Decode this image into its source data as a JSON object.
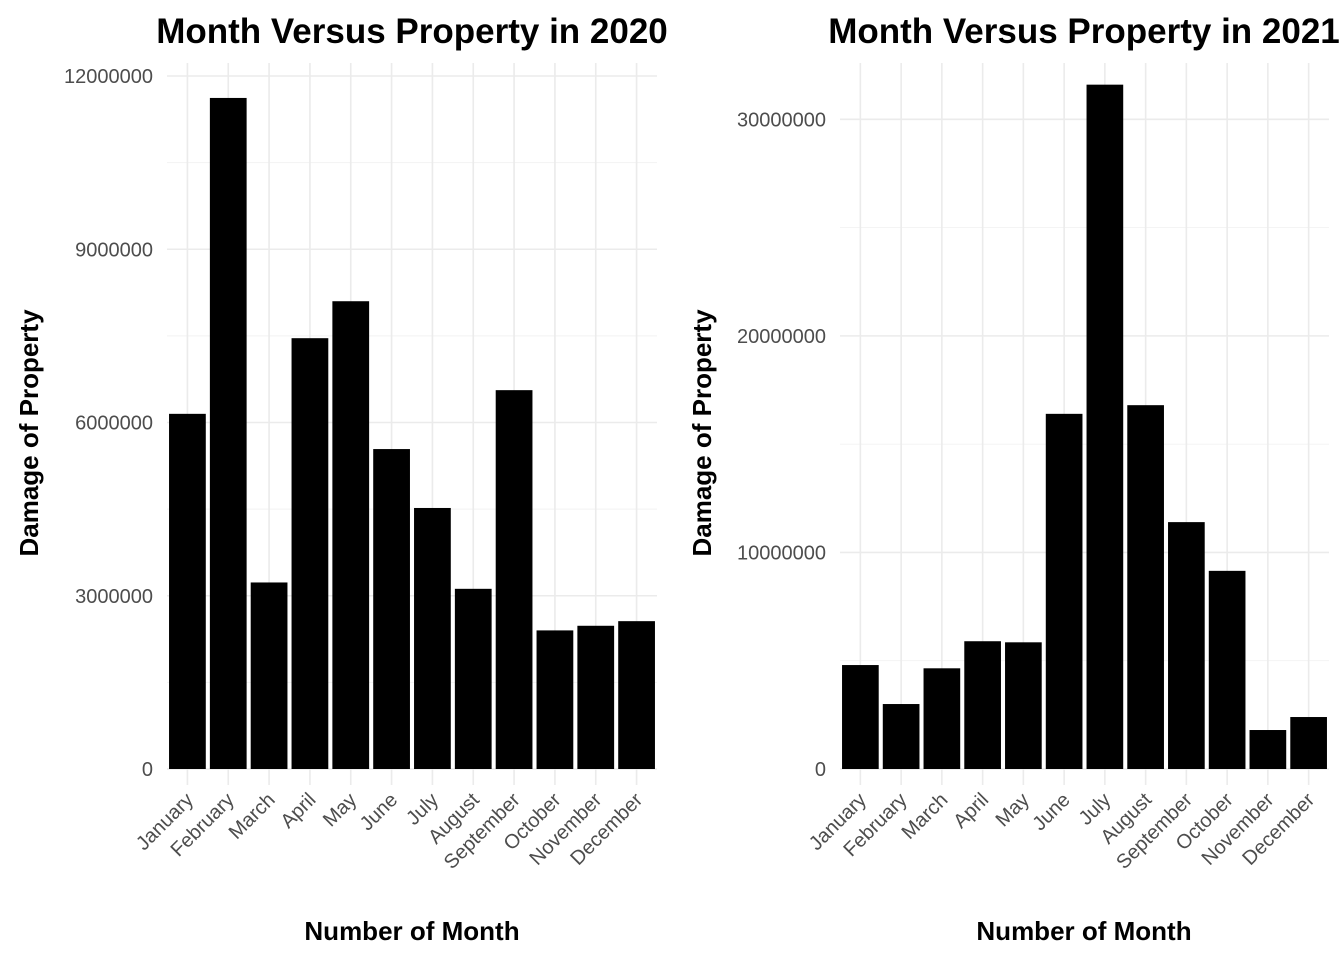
{
  "chart_data": [
    {
      "type": "bar",
      "title": "Month Versus Property in 2020",
      "xlabel": "Number of Month",
      "ylabel": "Damage of Property",
      "categories": [
        "January",
        "February",
        "March",
        "April",
        "May",
        "June",
        "July",
        "August",
        "September",
        "October",
        "November",
        "December"
      ],
      "values": [
        6150000,
        11620000,
        3230000,
        7460000,
        8100000,
        5540000,
        4520000,
        3120000,
        6560000,
        2400000,
        2480000,
        2560000
      ],
      "ylim": [
        0,
        12000000
      ],
      "yticks": [
        0,
        3000000,
        6000000,
        9000000,
        12000000
      ],
      "ytick_labels": [
        "0",
        "3000000",
        "6000000",
        "9000000",
        "12000000"
      ],
      "bar_color": "#000000",
      "grid": true,
      "legend": "none"
    },
    {
      "type": "bar",
      "title": "Month Versus Property in 2021",
      "xlabel": "Number of Month",
      "ylabel": "Damage of Property",
      "categories": [
        "January",
        "February",
        "March",
        "April",
        "May",
        "June",
        "July",
        "August",
        "September",
        "October",
        "November",
        "December"
      ],
      "values": [
        4800000,
        3000000,
        4650000,
        5900000,
        5850000,
        16400000,
        31600000,
        16800000,
        11400000,
        9150000,
        1800000,
        2400000
      ],
      "ylim": [
        0,
        32000000
      ],
      "yticks": [
        0,
        10000000,
        20000000,
        30000000
      ],
      "ytick_labels": [
        "0",
        "10000000",
        "20000000",
        "30000000"
      ],
      "bar_color": "#000000",
      "grid": true,
      "legend": "none"
    }
  ]
}
